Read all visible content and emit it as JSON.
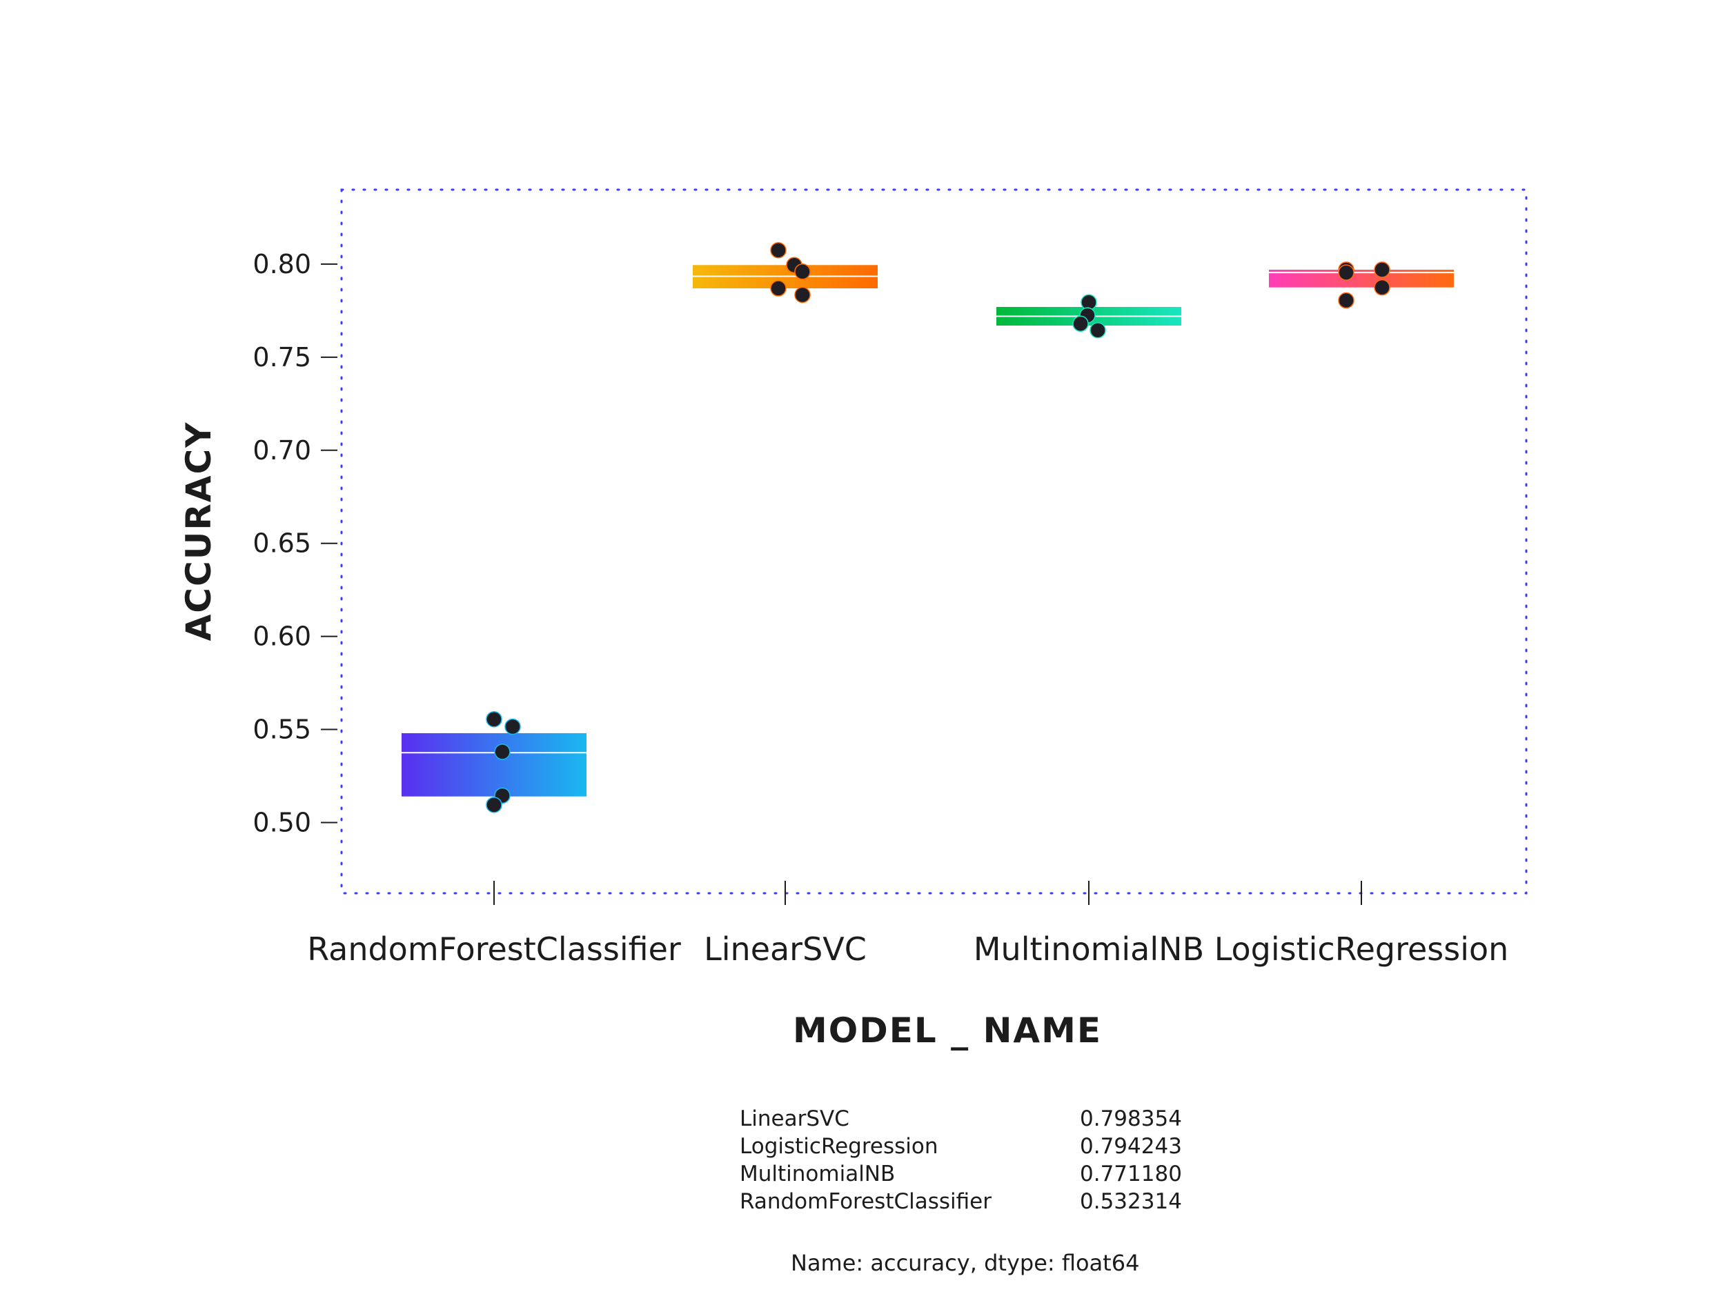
{
  "chart_data": {
    "type": "box",
    "xlabel": "MODEL _ NAME",
    "ylabel": "ACCURACY",
    "ylim": [
      0.462,
      0.84
    ],
    "yticks": [
      0.5,
      0.55,
      0.6,
      0.65,
      0.7,
      0.75,
      0.8
    ],
    "ytick_labels": [
      "0.50",
      "0.55",
      "0.60",
      "0.65",
      "0.70",
      "0.75",
      "0.80"
    ],
    "grid": false,
    "frame": "dotted",
    "frame_color": "#3a3aff",
    "categories": [
      "RandomForestClassifier",
      "LinearSVC",
      "MultinomialNB",
      "LogisticRegression"
    ],
    "boxes": [
      {
        "name": "RandomForestClassifier",
        "q1": 0.514,
        "median": 0.5375,
        "q3": 0.548,
        "whisker_low": 0.5095,
        "whisker_high": 0.5555,
        "colors": [
          "#5a2ff0",
          "#19b8f0"
        ],
        "points": [
          0.5555,
          0.5515,
          0.538,
          0.5145,
          0.5095
        ]
      },
      {
        "name": "LinearSVC",
        "q1": 0.787,
        "median": 0.7935,
        "q3": 0.7995,
        "whisker_low": 0.7835,
        "whisker_high": 0.8075,
        "colors": [
          "#f5b80a",
          "#ff6a00"
        ],
        "points": [
          0.8075,
          0.7995,
          0.796,
          0.787,
          0.7835
        ]
      },
      {
        "name": "MultinomialNB",
        "q1": 0.767,
        "median": 0.772,
        "q3": 0.777,
        "whisker_low": 0.7645,
        "whisker_high": 0.7795,
        "colors": [
          "#00b83a",
          "#18e6c0"
        ],
        "points": [
          0.7795,
          0.7725,
          0.768,
          0.7645
        ]
      },
      {
        "name": "LogisticRegression",
        "q1": 0.7875,
        "median": 0.7955,
        "q3": 0.797,
        "whisker_low": 0.7805,
        "whisker_high": 0.797,
        "colors": [
          "#ff3db8",
          "#ff6a10"
        ],
        "points": [
          0.797,
          0.7955,
          0.797,
          0.7875,
          0.7805
        ]
      }
    ]
  },
  "summary": {
    "rows": [
      {
        "name": "LinearSVC",
        "value": "0.798354"
      },
      {
        "name": "LogisticRegression",
        "value": "0.794243"
      },
      {
        "name": "MultinomialNB",
        "value": "0.771180"
      },
      {
        "name": "RandomForestClassifier",
        "value": "0.532314"
      }
    ],
    "footer": "Name: accuracy, dtype: float64"
  }
}
